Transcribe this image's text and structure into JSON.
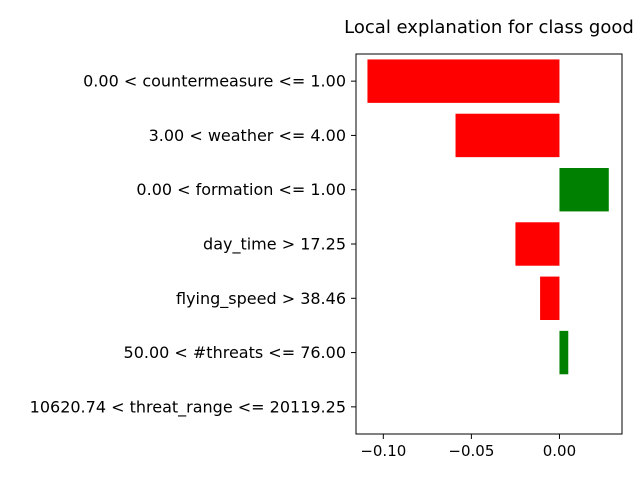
{
  "chart_data": {
    "type": "bar",
    "orientation": "horizontal",
    "title": "Local explanation for class good",
    "xlabel": "",
    "ylabel": "",
    "categories": [
      "0.00 < countermeasure <= 1.00",
      "3.00 < weather <= 4.00",
      "0.00 < formation <= 1.00",
      "day_time > 17.25",
      "flying_speed > 38.46",
      "50.00 < #threats <= 76.00",
      "10620.74 < threat_range <= 20119.25"
    ],
    "values": [
      -0.109,
      -0.059,
      0.028,
      -0.025,
      -0.011,
      0.005,
      0.0
    ],
    "xlim": [
      -0.1155,
      0.0355
    ],
    "xticks": [
      -0.1,
      -0.05,
      0.0
    ],
    "xtick_labels": [
      "−0.10",
      "−0.05",
      "0.00"
    ],
    "grid": false,
    "legend": "none",
    "colors": {
      "negative": "#ff0000",
      "positive": "#008000"
    }
  }
}
